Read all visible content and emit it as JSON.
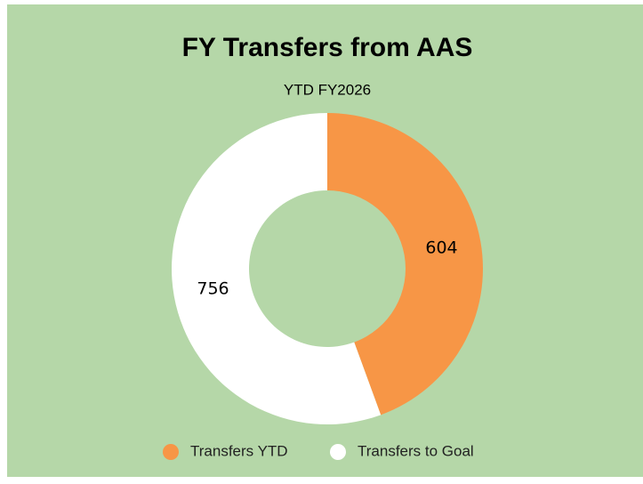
{
  "chart_data": {
    "type": "donut",
    "title": "FY Transfers from AAS",
    "subtitle": "YTD FY2026",
    "categories": [
      "Transfers YTD",
      "Transfers to Goal"
    ],
    "values": [
      604,
      756
    ],
    "colors": [
      "#f79646",
      "#ffffff"
    ],
    "background": "#b5d7a8",
    "legend": "bottom"
  }
}
